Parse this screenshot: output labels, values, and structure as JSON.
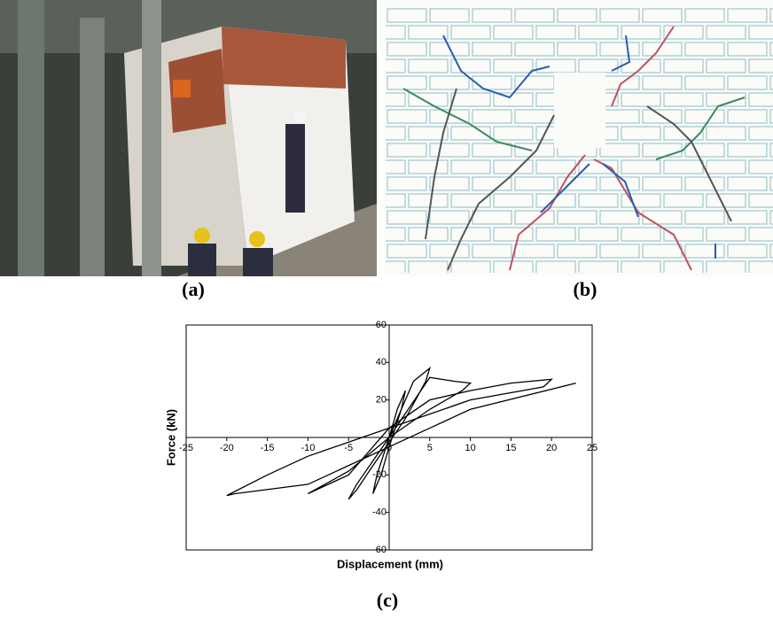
{
  "figure": {
    "panel_labels": [
      "(a)",
      "(b)",
      "(c)"
    ]
  },
  "chart_data": {
    "type": "line",
    "x_label": "Displacement (mm)",
    "y_label": "Force (kN)",
    "xlim": [
      -25,
      25
    ],
    "ylim": [
      -60,
      60
    ],
    "xticks": [
      -25,
      -20,
      -15,
      -10,
      -5,
      0,
      5,
      10,
      15,
      20,
      25
    ],
    "yticks": [
      -60,
      -40,
      -20,
      20,
      40,
      60
    ],
    "series": [
      {
        "color": "#000000",
        "x": [
          0,
          1,
          2,
          1.5,
          0,
          -1,
          -2,
          -1.5,
          0,
          3,
          5,
          4.5,
          2,
          -2,
          -4,
          -5,
          -4,
          0,
          5,
          8,
          10,
          9,
          5,
          0,
          -5,
          -10,
          -9,
          -5,
          0,
          5,
          10,
          15,
          20,
          19,
          10,
          0,
          -10,
          -15,
          -20,
          -19,
          -10,
          0,
          5,
          10,
          23
        ],
        "values": [
          0,
          15,
          25,
          15,
          -5,
          -20,
          -30,
          -20,
          0,
          30,
          37,
          30,
          10,
          -15,
          -28,
          -33,
          -25,
          0,
          32,
          30,
          29,
          25,
          15,
          0,
          -18,
          -30,
          -28,
          -20,
          5,
          20,
          25,
          29,
          31,
          27,
          20,
          5,
          -10,
          -20,
          -31,
          -30,
          -25,
          -5,
          5,
          15,
          29
        ]
      }
    ]
  }
}
